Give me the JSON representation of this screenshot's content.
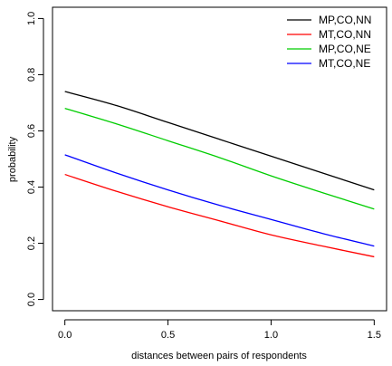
{
  "chart_data": {
    "type": "line",
    "title": "",
    "xlabel": "distances between pairs of respondents",
    "ylabel": "probability",
    "xlim": [
      -0.06,
      1.56
    ],
    "ylim": [
      -0.04,
      1.04
    ],
    "x_ticks": [
      0.0,
      0.5,
      1.0,
      1.5
    ],
    "x_tick_labels": [
      "0.0",
      "0.5",
      "1.0",
      "1.5"
    ],
    "y_ticks": [
      0.0,
      0.2,
      0.4,
      0.6,
      0.8,
      1.0
    ],
    "y_tick_labels": [
      "0.0",
      "0.2",
      "0.4",
      "0.6",
      "0.8",
      "1.0"
    ],
    "grid": false,
    "legend_position": "top-right",
    "x": [
      0.0,
      0.25,
      0.5,
      0.75,
      1.0,
      1.25,
      1.5
    ],
    "series": [
      {
        "name": "MP,CO,NN",
        "color": "#000000",
        "values": [
          0.74,
          0.69,
          0.63,
          0.57,
          0.51,
          0.45,
          0.39
        ]
      },
      {
        "name": "MT,CO,NN",
        "color": "#ff0000",
        "values": [
          0.445,
          0.385,
          0.33,
          0.28,
          0.23,
          0.19,
          0.152
        ]
      },
      {
        "name": "MP,CO,NE",
        "color": "#00cd00",
        "values": [
          0.68,
          0.625,
          0.565,
          0.505,
          0.44,
          0.38,
          0.322
        ]
      },
      {
        "name": "MT,CO,NE",
        "color": "#0000ff",
        "values": [
          0.515,
          0.45,
          0.39,
          0.335,
          0.285,
          0.235,
          0.19
        ]
      }
    ]
  }
}
